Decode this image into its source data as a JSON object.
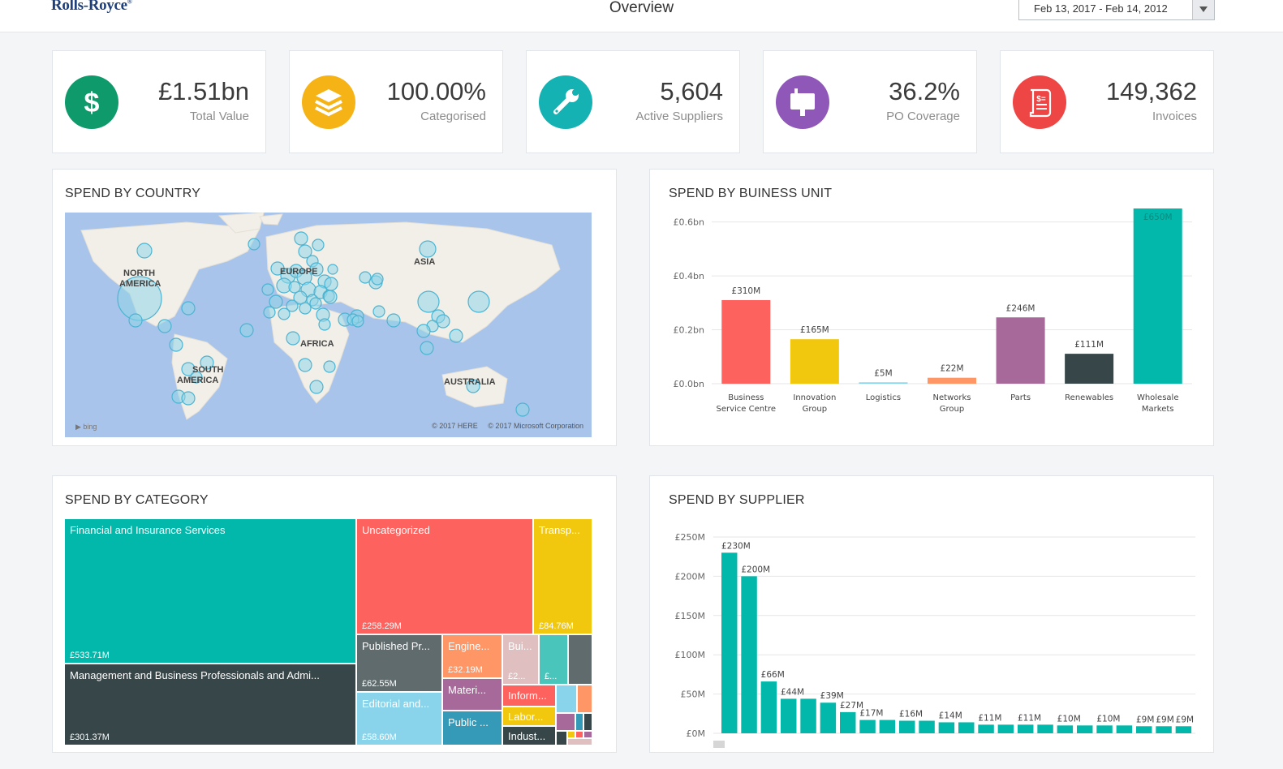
{
  "header": {
    "logo": "Rolls-Royce",
    "title": "Overview",
    "date_range": "Feb 13, 2017 - Feb 14, 2012"
  },
  "kpis": [
    {
      "value": "£1.51bn",
      "label": "Total Value",
      "color": "#0f9a6c",
      "icon": "dollar-icon"
    },
    {
      "value": "100.00%",
      "label": "Categorised",
      "color": "#f6b316",
      "icon": "layers-icon"
    },
    {
      "value": "5,604",
      "label": "Active Suppliers",
      "color": "#14b2b2",
      "icon": "wrench-icon"
    },
    {
      "value": "36.2%",
      "label": "PO Coverage",
      "color": "#8e57b8",
      "icon": "mailbox-icon"
    },
    {
      "value": "149,362",
      "label": "Invoices",
      "color": "#ee4545",
      "icon": "invoice-icon"
    }
  ],
  "panels": {
    "country": {
      "title": "SPEND BY COUNTRY",
      "regions": [
        "NORTH",
        "AMERICA",
        "EUROPE",
        "ASIA",
        "AFRICA",
        "SOUTH",
        "AMERICA",
        "AUSTRALIA"
      ],
      "attribution_left": "bing",
      "attribution_right": "© 2017 HERE     © 2017 Microsoft Corporation"
    },
    "business_unit": {
      "title": "SPEND BY BUINESS UNIT"
    },
    "category": {
      "title": "SPEND BY CATEGORY"
    },
    "supplier": {
      "title": "SPEND BY SUPPLIER"
    }
  },
  "treemap": [
    {
      "name": "Financial and Insurance Services",
      "value": "£533.71M",
      "color": "#01b8aa"
    },
    {
      "name": "Management and Business Professionals and Admi...",
      "value": "£301.37M",
      "color": "#374649"
    },
    {
      "name": "Uncategorized",
      "value": "£258.29M",
      "color": "#fd625e"
    },
    {
      "name": "Transp...",
      "value": "£84.76M",
      "color": "#f2c80f"
    },
    {
      "name": "Published Pr...",
      "value": "£62.55M",
      "color": "#5f6b6d"
    },
    {
      "name": "Editorial and...",
      "value": "£58.60M",
      "color": "#8ad4eb"
    },
    {
      "name": "Engine...",
      "value": "£32.19M",
      "color": "#fe9666"
    },
    {
      "name": "Materi...",
      "value": "",
      "color": "#a66999"
    },
    {
      "name": "Public ...",
      "value": "",
      "color": "#3599b8"
    },
    {
      "name": "Bui...",
      "value": "£2...",
      "color": "#dfbfbf"
    },
    {
      "name": "Inform...",
      "value": "",
      "color": "#fd625e"
    },
    {
      "name": "Labor...",
      "value": "",
      "color": "#f2c80f"
    },
    {
      "name": "Indust...",
      "value": "",
      "color": "#374649"
    },
    {
      "name": "",
      "value": "£...",
      "color": "#4ac5bb"
    },
    {
      "name": "",
      "value": "",
      "color": "#5f6b6d"
    }
  ],
  "chart_data": [
    {
      "type": "bar",
      "title": "SPEND BY BUINESS UNIT",
      "categories": [
        [
          "Business",
          "Service Centre"
        ],
        [
          "Innovation",
          "Group"
        ],
        [
          "Logistics"
        ],
        [
          "Networks",
          "Group"
        ],
        [
          "Parts"
        ],
        [
          "Renewables"
        ],
        [
          "Wholesale",
          "Markets"
        ]
      ],
      "values": [
        0.31,
        0.165,
        0.005,
        0.022,
        0.246,
        0.111,
        0.65
      ],
      "data_labels": [
        "£310M",
        "£165M",
        "£5M",
        "£22M",
        "£246M",
        "£111M",
        "£650M"
      ],
      "colors": [
        "#fd625e",
        "#f2c80f",
        "#8ad4eb",
        "#fe9666",
        "#a66999",
        "#374649",
        "#01b8aa"
      ],
      "ylim": [
        0,
        0.65
      ],
      "yticks": [
        0,
        0.2,
        0.4,
        0.6
      ],
      "ytick_labels": [
        "£0.0bn",
        "£0.2bn",
        "£0.4bn",
        "£0.6bn"
      ],
      "grid": true
    },
    {
      "type": "bar",
      "title": "SPEND BY SUPPLIER",
      "values": [
        230,
        200,
        66,
        44,
        44,
        39,
        27,
        17,
        17,
        16,
        16,
        14,
        14,
        11,
        11,
        11,
        11,
        10,
        10,
        10,
        10,
        9,
        9,
        9
      ],
      "data_labels": [
        "£230M",
        "£200M",
        "£66M",
        "£44M",
        "",
        "£39M",
        "£27M",
        "£17M",
        "",
        "£16M",
        "",
        "£14M",
        "",
        "£11M",
        "",
        "£11M",
        "",
        "£10M",
        "",
        "£10M",
        "",
        "£9M",
        "£9M",
        "£9M"
      ],
      "color": "#01b8aa",
      "ylim": [
        0,
        250
      ],
      "yticks": [
        0,
        50,
        100,
        150,
        200,
        250
      ],
      "ytick_labels": [
        "£0M",
        "£50M",
        "£100M",
        "£150M",
        "£200M",
        "£250M"
      ],
      "grid": true
    }
  ]
}
